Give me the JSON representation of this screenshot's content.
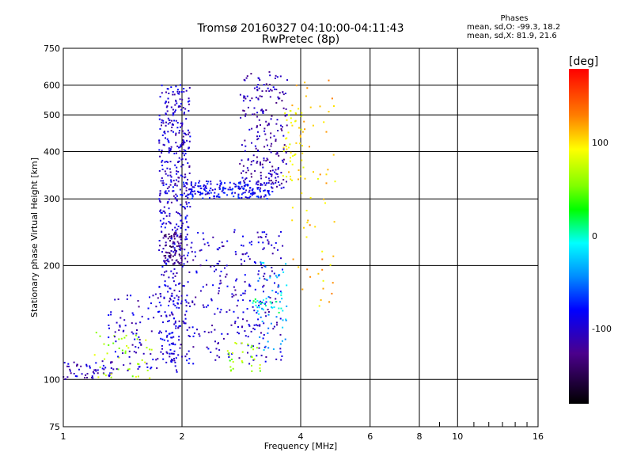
{
  "title_line1": "Tromsø 20160327 04:10:00-04:11:43",
  "title_line2": "RwPretec (8p)",
  "phase_legend": {
    "title": "Phases",
    "line1": "mean, sd,O: -99.3, 18.2",
    "line2": "mean, sd,X:  81.9, 21.6"
  },
  "colorbar": {
    "label": "[deg]",
    "ticks": [
      "100",
      "0",
      "-100"
    ],
    "tick_values": [
      100,
      0,
      -100
    ],
    "range": [
      -180,
      180
    ]
  },
  "chart_data": {
    "type": "scatter",
    "xlabel": "Frequency [MHz]",
    "ylabel": "Stationary phase Virtual Height [km]",
    "xscale": "log",
    "yscale": "log",
    "xlim": [
      1,
      16
    ],
    "ylim": [
      75,
      750
    ],
    "x_ticks": [
      1,
      2,
      4,
      6,
      8,
      10,
      16
    ],
    "x_tick_labels": [
      "1",
      "2",
      "4",
      "6",
      "8",
      "10",
      "16"
    ],
    "x_minor_ticks": [
      9,
      11,
      12,
      13,
      14,
      15
    ],
    "y_ticks": [
      75,
      100,
      200,
      300,
      400,
      500,
      600,
      750
    ],
    "y_tick_labels": [
      "75",
      "100",
      "200",
      "300",
      "400",
      "500",
      "600",
      "750"
    ],
    "grid": true,
    "clusters": [
      {
        "x0": 1.0,
        "x1": 1.35,
        "y0": 100,
        "y1": 112,
        "phase": -105,
        "n": 55
      },
      {
        "x0": 1.2,
        "x1": 1.7,
        "y0": 100,
        "y1": 135,
        "phase": 70,
        "n": 45
      },
      {
        "x0": 1.3,
        "x1": 2.0,
        "y0": 104,
        "y1": 170,
        "phase": -100,
        "n": 120
      },
      {
        "x0": 1.75,
        "x1": 2.1,
        "y0": 110,
        "y1": 290,
        "phase": -95,
        "n": 220
      },
      {
        "x0": 1.75,
        "x1": 2.1,
        "y0": 290,
        "y1": 600,
        "phase": -100,
        "n": 260
      },
      {
        "x0": 1.8,
        "x1": 2.0,
        "y0": 200,
        "y1": 245,
        "phase": -130,
        "n": 80
      },
      {
        "x0": 2.0,
        "x1": 3.4,
        "y0": 300,
        "y1": 335,
        "phase": -85,
        "n": 200
      },
      {
        "x0": 2.1,
        "x1": 3.6,
        "y0": 110,
        "y1": 250,
        "phase": -100,
        "n": 260
      },
      {
        "x0": 2.6,
        "x1": 3.2,
        "y0": 105,
        "y1": 125,
        "phase": 60,
        "n": 30
      },
      {
        "x0": 2.8,
        "x1": 3.7,
        "y0": 320,
        "y1": 650,
        "phase": -110,
        "n": 220
      },
      {
        "x0": 3.1,
        "x1": 3.7,
        "y0": 115,
        "y1": 205,
        "phase": -30,
        "n": 50
      },
      {
        "x0": 3.6,
        "x1": 4.1,
        "y0": 330,
        "y1": 520,
        "phase": 100,
        "n": 50
      },
      {
        "x0": 3.8,
        "x1": 4.9,
        "y0": 150,
        "y1": 620,
        "phase": 110,
        "n": 60
      },
      {
        "x0": 3.0,
        "x1": 3.6,
        "y0": 150,
        "y1": 170,
        "phase": 0,
        "n": 25
      }
    ]
  }
}
